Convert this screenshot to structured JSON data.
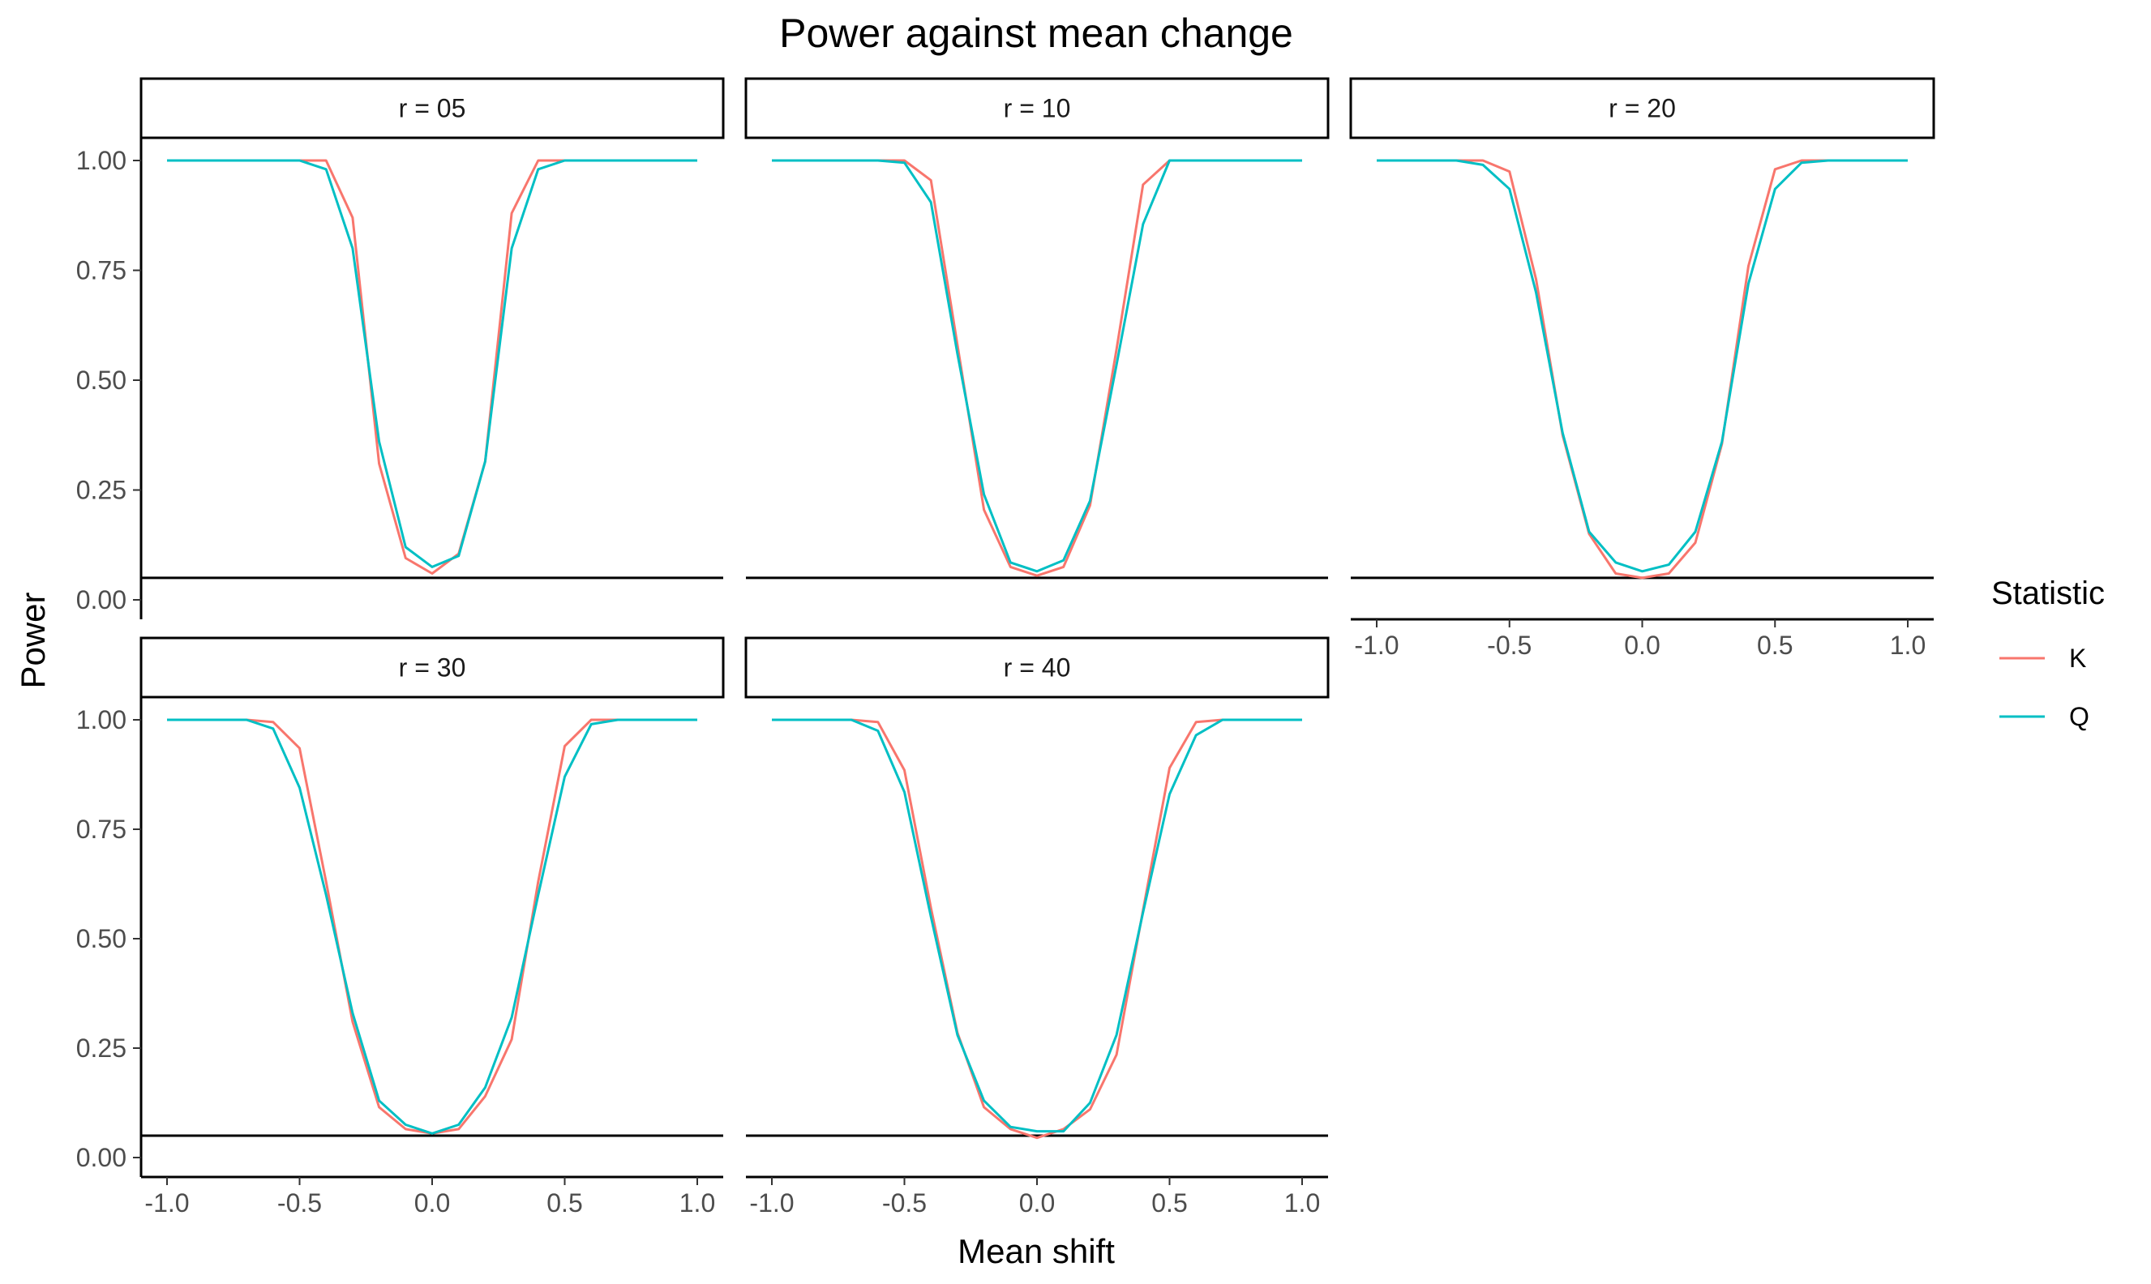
{
  "chart_data": {
    "type": "line",
    "title": "Power against mean change",
    "xlabel": "Mean shift",
    "ylabel": "Power",
    "xlim": [
      -1.0,
      1.0
    ],
    "ylim": [
      0.0,
      1.0
    ],
    "x_ticks": [
      "-1.0",
      "-0.5",
      "0.0",
      "0.5",
      "1.0"
    ],
    "y_ticks": [
      "0.00",
      "0.25",
      "0.50",
      "0.75",
      "1.00"
    ],
    "reference_line": 0.05,
    "grid": false,
    "legend": {
      "title": "Statistic",
      "placement": "right",
      "entries": [
        {
          "label": "K",
          "color": "#F8766D"
        },
        {
          "label": "Q",
          "color": "#00BFC4"
        }
      ]
    },
    "x": [
      -1.0,
      -0.9,
      -0.8,
      -0.7,
      -0.6,
      -0.5,
      -0.4,
      -0.3,
      -0.2,
      -0.1,
      0.0,
      0.1,
      0.2,
      0.3,
      0.4,
      0.5,
      0.6,
      0.7,
      0.8,
      0.9,
      1.0
    ],
    "panels": [
      {
        "label": "r = 05",
        "series": [
          {
            "name": "K",
            "values": [
              1.0,
              1.0,
              1.0,
              1.0,
              1.0,
              1.0,
              1.0,
              0.87,
              0.31,
              0.095,
              0.06,
              0.105,
              0.315,
              0.88,
              1.0,
              1.0,
              1.0,
              1.0,
              1.0,
              1.0,
              1.0
            ]
          },
          {
            "name": "Q",
            "values": [
              1.0,
              1.0,
              1.0,
              1.0,
              1.0,
              1.0,
              0.98,
              0.8,
              0.36,
              0.12,
              0.075,
              0.1,
              0.315,
              0.8,
              0.98,
              1.0,
              1.0,
              1.0,
              1.0,
              1.0,
              1.0
            ]
          }
        ]
      },
      {
        "label": "r = 10",
        "series": [
          {
            "name": "K",
            "values": [
              1.0,
              1.0,
              1.0,
              1.0,
              1.0,
              1.0,
              0.955,
              0.58,
              0.205,
              0.075,
              0.055,
              0.075,
              0.215,
              0.57,
              0.945,
              1.0,
              1.0,
              1.0,
              1.0,
              1.0,
              1.0
            ]
          },
          {
            "name": "Q",
            "values": [
              1.0,
              1.0,
              1.0,
              1.0,
              1.0,
              0.995,
              0.905,
              0.56,
              0.24,
              0.085,
              0.065,
              0.09,
              0.225,
              0.535,
              0.855,
              1.0,
              1.0,
              1.0,
              1.0,
              1.0,
              1.0
            ]
          }
        ]
      },
      {
        "label": "r = 20",
        "series": [
          {
            "name": "K",
            "values": [
              1.0,
              1.0,
              1.0,
              1.0,
              1.0,
              0.975,
              0.73,
              0.375,
              0.15,
              0.06,
              0.05,
              0.06,
              0.13,
              0.355,
              0.76,
              0.98,
              1.0,
              1.0,
              1.0,
              1.0,
              1.0
            ]
          },
          {
            "name": "Q",
            "values": [
              1.0,
              1.0,
              1.0,
              1.0,
              0.99,
              0.935,
              0.7,
              0.38,
              0.155,
              0.085,
              0.065,
              0.08,
              0.155,
              0.36,
              0.72,
              0.935,
              0.995,
              1.0,
              1.0,
              1.0,
              1.0
            ]
          }
        ]
      },
      {
        "label": "r = 30",
        "series": [
          {
            "name": "K",
            "values": [
              1.0,
              1.0,
              1.0,
              1.0,
              0.995,
              0.935,
              0.63,
              0.31,
              0.115,
              0.065,
              0.055,
              0.065,
              0.14,
              0.27,
              0.63,
              0.94,
              1.0,
              1.0,
              1.0,
              1.0,
              1.0
            ]
          },
          {
            "name": "Q",
            "values": [
              1.0,
              1.0,
              1.0,
              1.0,
              0.98,
              0.845,
              0.6,
              0.33,
              0.13,
              0.075,
              0.055,
              0.075,
              0.16,
              0.32,
              0.6,
              0.87,
              0.99,
              1.0,
              1.0,
              1.0,
              1.0
            ]
          }
        ]
      },
      {
        "label": "r = 40",
        "series": [
          {
            "name": "K",
            "values": [
              1.0,
              1.0,
              1.0,
              1.0,
              0.995,
              0.885,
              0.57,
              0.285,
              0.115,
              0.065,
              0.045,
              0.065,
              0.11,
              0.235,
              0.565,
              0.89,
              0.995,
              1.0,
              1.0,
              1.0,
              1.0
            ]
          },
          {
            "name": "Q",
            "values": [
              1.0,
              1.0,
              1.0,
              1.0,
              0.975,
              0.835,
              0.55,
              0.28,
              0.13,
              0.07,
              0.06,
              0.06,
              0.125,
              0.28,
              0.56,
              0.83,
              0.965,
              1.0,
              1.0,
              1.0,
              1.0
            ]
          }
        ]
      }
    ]
  }
}
